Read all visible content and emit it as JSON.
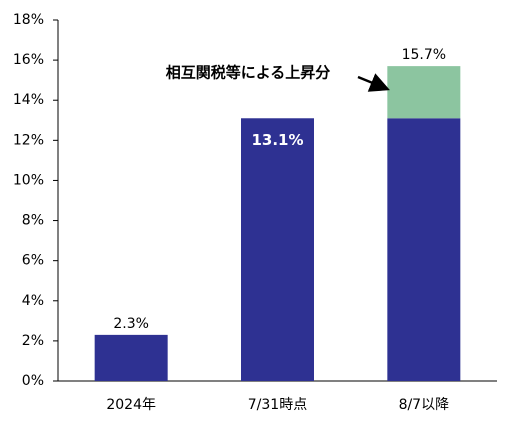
{
  "chart_data": {
    "type": "stacked_bar",
    "categories": [
      "2024年",
      "7/31時点",
      "8/7以降"
    ],
    "series": [
      {
        "name": "base",
        "color": "#2e3192",
        "values": [
          2.3,
          13.1,
          13.1
        ]
      },
      {
        "name": "相互関税等による上昇分",
        "color": "#8cc5a0",
        "values": [
          null,
          null,
          2.6
        ]
      }
    ],
    "totals": [
      2.3,
      13.1,
      15.7
    ],
    "total_labels": [
      "2.3%",
      "13.1%",
      "15.7%"
    ],
    "ylim": [
      0,
      18
    ],
    "yticks": [
      {
        "value": 0,
        "label": "0%"
      },
      {
        "value": 2,
        "label": "2%"
      },
      {
        "value": 4,
        "label": "4%"
      },
      {
        "value": 6,
        "label": "6%"
      },
      {
        "value": 8,
        "label": "8%"
      },
      {
        "value": 10,
        "label": "10%"
      },
      {
        "value": 12,
        "label": "12%"
      },
      {
        "value": 14,
        "label": "14%"
      },
      {
        "value": 16,
        "label": "16%"
      },
      {
        "value": 18,
        "label": "18%"
      }
    ]
  }
}
